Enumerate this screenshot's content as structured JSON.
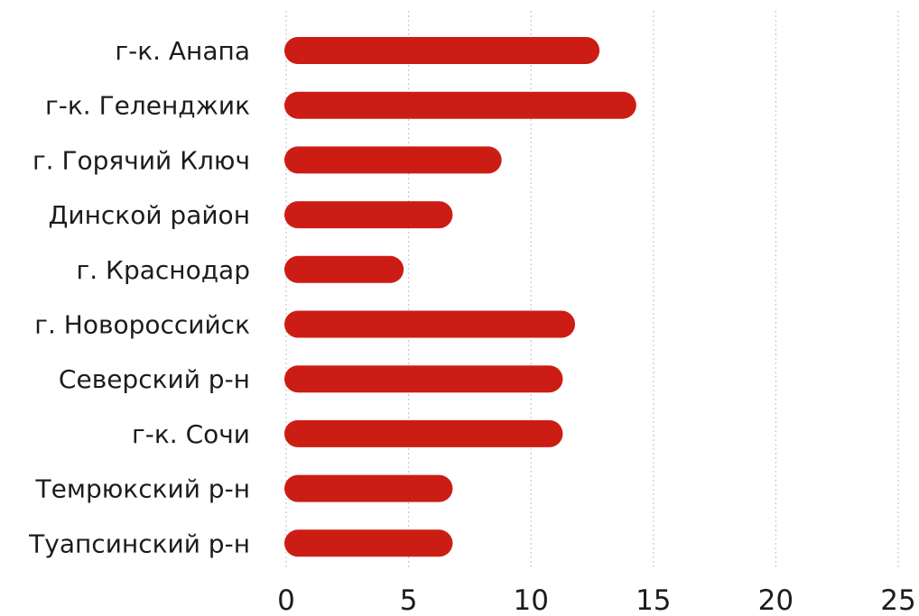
{
  "chart_data": {
    "type": "bar",
    "orientation": "horizontal",
    "categories": [
      "г-к. Анапа",
      "г-к. Геленджик",
      "г. Горячий Ключ",
      "Динской район",
      "г. Краснодар",
      "г. Новороссийск",
      "Северский р-н",
      "г-к. Сочи",
      "Темрюкский р-н",
      "Туапсинский р-н"
    ],
    "values": [
      12.8,
      14.3,
      8.8,
      6.8,
      4.8,
      11.8,
      11.3,
      11.3,
      6.8,
      6.8
    ],
    "xlim": [
      0,
      25
    ],
    "xticks": [
      "0",
      "5",
      "10",
      "15",
      "20",
      "25"
    ],
    "grid": true,
    "bar_color": "#cc1d14"
  }
}
